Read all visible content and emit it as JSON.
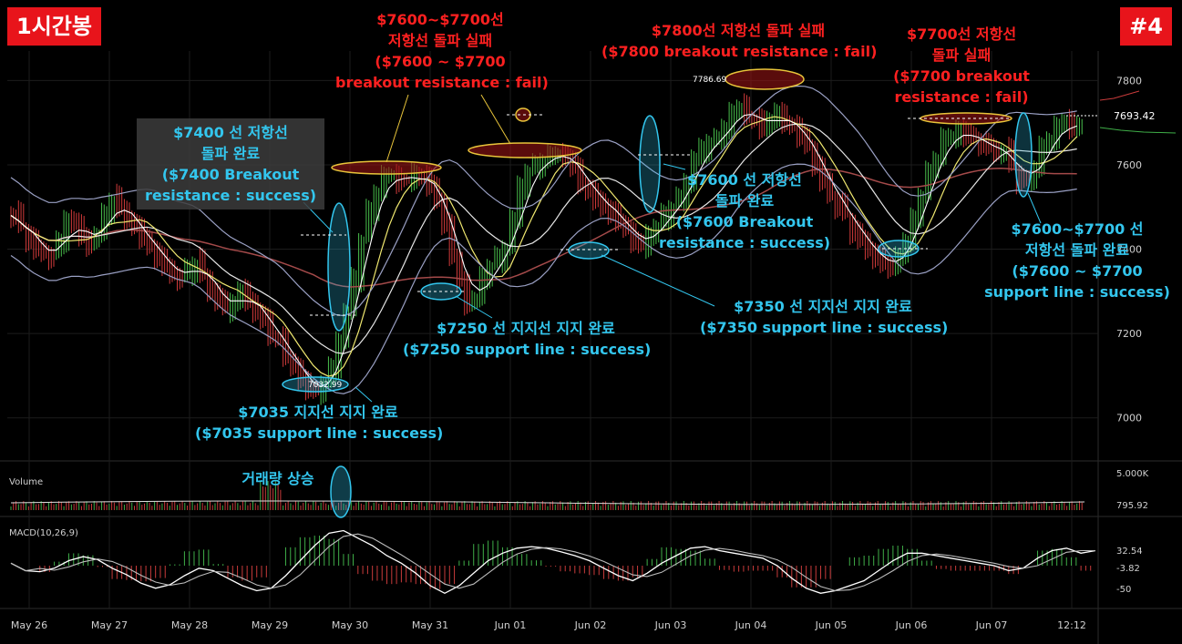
{
  "header": {
    "timeframe_badge": "1시간봉",
    "number_badge": "#4"
  },
  "annotations": [
    {
      "id": "a1",
      "color": "red",
      "lines": [
        "$7600~$7700선",
        "저항선 돌파 실패",
        "($7600 ~ $7700",
        "breakout resistance : fail)"
      ]
    },
    {
      "id": "a2",
      "color": "red",
      "lines": [
        "$7800선 저항선 돌파 실패",
        "($7800 breakout resistance : fail)"
      ]
    },
    {
      "id": "a3",
      "color": "red",
      "lines": [
        "$7700선 저항선",
        "돌파 실패",
        "($7700 breakout",
        "resistance : fail)"
      ]
    },
    {
      "id": "a4",
      "color": "blue",
      "lines": [
        "$7400 선 저항선",
        "돌파 완료",
        "($7400 Breakout",
        "resistance : success)"
      ]
    },
    {
      "id": "a5",
      "color": "blue",
      "lines": [
        "$7600 선 저항선",
        "돌파 완료",
        "($7600 Breakout",
        "resistance : success)"
      ]
    },
    {
      "id": "a6",
      "color": "blue",
      "lines": [
        "$7600~$7700 선",
        "저항선 돌파 완료",
        "($7600 ~ $7700",
        "support line : success)"
      ]
    },
    {
      "id": "a7",
      "color": "blue",
      "lines": [
        "$7350 선 지지선 지지 완료",
        "($7350 support line : success)"
      ]
    },
    {
      "id": "a8",
      "color": "blue",
      "lines": [
        "$7250 선 지지선 지지 완료",
        "($7250 support line : success)"
      ]
    },
    {
      "id": "a9",
      "color": "blue",
      "lines": [
        "$7035  지지선 지지 완료",
        "($7035 support line : success)"
      ]
    },
    {
      "id": "a10",
      "color": "blue",
      "lines": [
        "거래량 상승"
      ]
    }
  ],
  "chart_data": [
    {
      "type": "line",
      "panel": "price",
      "title": "",
      "x_ticks": [
        "May 26",
        "May 27",
        "May 28",
        "May 29",
        "May 30",
        "May 31",
        "Jun 01",
        "Jun 02",
        "Jun 03",
        "Jun 04",
        "Jun 05",
        "Jun 06",
        "Jun 07",
        "12:12"
      ],
      "y_ticks": [
        7000,
        7200,
        7400,
        7600,
        7800
      ],
      "ylim": [
        6900,
        7870
      ],
      "last_price": "7693.42",
      "price_labels": {
        "high": "7786.69",
        "low": "7032.99"
      },
      "series": [
        {
          "values": [
            7480,
            7455,
            7420,
            7400,
            7390,
            7380,
            7420,
            7470,
            7460,
            7430,
            7410,
            7440,
            7480,
            7520,
            7500,
            7470,
            7450,
            7430,
            7400,
            7380,
            7360,
            7340,
            7330,
            7350,
            7370,
            7340,
            7300,
            7280,
            7260,
            7270,
            7300,
            7280,
            7250,
            7230,
            7200,
            7180,
            7150,
            7120,
            7090,
            7070,
            7060,
            7080,
            7120,
            7180,
            7250,
            7330,
            7420,
            7490,
            7540,
            7570,
            7580,
            7560,
            7560,
            7580,
            7570,
            7550,
            7520,
            7450,
            7390,
            7320,
            7270,
            7290,
            7330,
            7360,
            7380,
            7400,
            7470,
            7550,
            7580,
            7600,
            7610,
            7620,
            7630,
            7620,
            7590,
            7560,
            7530,
            7520,
            7500,
            7480,
            7470,
            7440,
            7420,
            7410,
            7430,
            7460,
            7480,
            7500,
            7520,
            7560,
            7610,
            7640,
            7650,
            7660,
            7690,
            7720,
            7740,
            7720,
            7700,
            7690,
            7710,
            7720,
            7700,
            7690,
            7670,
            7640,
            7600,
            7560,
            7530,
            7500,
            7480,
            7440,
            7420,
            7400,
            7380,
            7360,
            7360,
            7380,
            7420,
            7470,
            7530,
            7580,
            7620,
            7660,
            7670,
            7680,
            7670,
            7660,
            7650,
            7640,
            7630,
            7630,
            7600,
            7560,
            7560,
            7600,
            7640,
            7660,
            7690,
            7700,
            7690,
            7690
          ]
        }
      ],
      "bollinger": {
        "upper": "light",
        "lower": "light"
      },
      "ma_long_color": "#a44a4a"
    },
    {
      "type": "bar",
      "panel": "volume",
      "label": "Volume",
      "y_ticks": [
        "5.000K",
        "795.92"
      ],
      "spike_position_label": "May 30"
    },
    {
      "type": "line",
      "panel": "macd",
      "label": "MACD(10,26,9)",
      "y_ticks": [
        "32.54",
        "-3.82",
        "-50"
      ],
      "series": [
        {
          "values": [
            5,
            -10,
            -12,
            -5,
            10,
            18,
            12,
            -5,
            -18,
            -35,
            -45,
            -38,
            -20,
            -5,
            -10,
            -25,
            -40,
            -50,
            -45,
            -20,
            10,
            40,
            65,
            70,
            55,
            40,
            20,
            5,
            -15,
            -40,
            -55,
            -40,
            -15,
            10,
            25,
            35,
            38,
            35,
            28,
            20,
            10,
            -5,
            -20,
            -30,
            -15,
            5,
            20,
            35,
            38,
            30,
            25,
            20,
            15,
            0,
            -25,
            -45,
            -55,
            -50,
            -40,
            -30,
            -10,
            10,
            25,
            25,
            20,
            15,
            10,
            5,
            0,
            -10,
            -5,
            15,
            30,
            35,
            25,
            30
          ]
        }
      ]
    }
  ]
}
